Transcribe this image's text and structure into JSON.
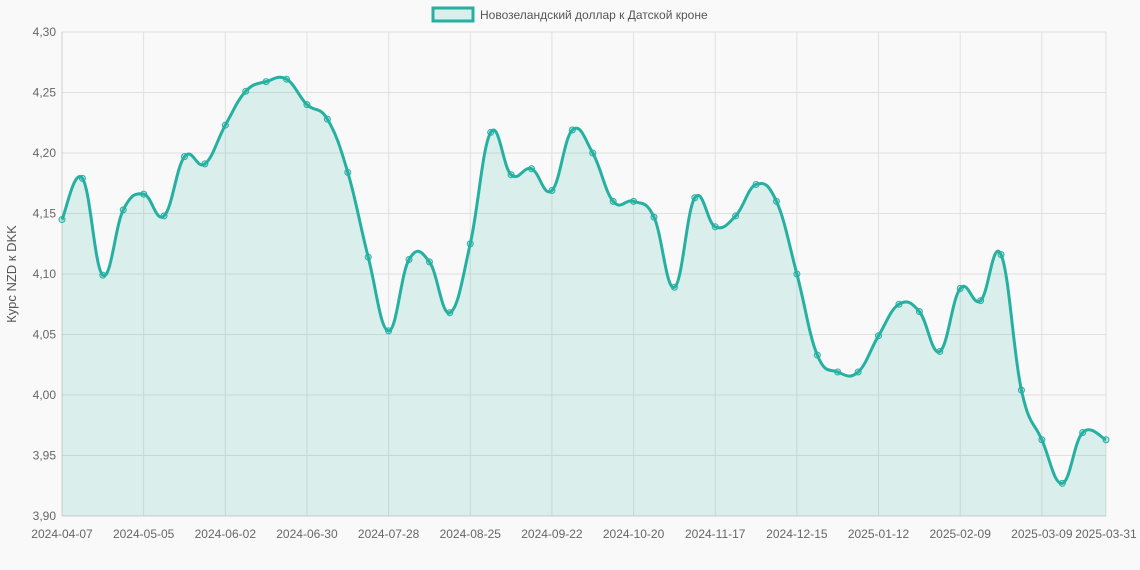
{
  "colors": {
    "line": "#26b0a2",
    "fill": "rgba(38,176,162,0.15)",
    "grid": "#e0e0e0",
    "background": "#f9f9f9"
  },
  "chart_data": {
    "type": "area",
    "ylabel": "Курс NZD к DKK",
    "ylim": [
      3.9,
      4.3
    ],
    "y_ticks": [
      "4,30",
      "4,25",
      "4,20",
      "4,15",
      "4,10",
      "4,05",
      "4,00",
      "3,95",
      "3,90"
    ],
    "x_tick_labels": [
      "2024-04-07",
      "2024-05-05",
      "2024-06-02",
      "2024-06-30",
      "2024-07-28",
      "2024-08-25",
      "2024-09-22",
      "2024-10-20",
      "2024-11-17",
      "2024-12-15",
      "2025-01-12",
      "2025-02-09",
      "2025-03-09",
      "2025-03-31"
    ],
    "legend": {
      "position": "top-center"
    },
    "grid": true,
    "series": [
      {
        "name": "Новозеландский доллар к Датской кроне",
        "x": [
          "2024-04-07",
          "2024-04-14",
          "2024-04-21",
          "2024-04-28",
          "2024-05-05",
          "2024-05-12",
          "2024-05-19",
          "2024-05-26",
          "2024-06-02",
          "2024-06-09",
          "2024-06-16",
          "2024-06-23",
          "2024-06-30",
          "2024-07-07",
          "2024-07-14",
          "2024-07-21",
          "2024-07-28",
          "2024-08-04",
          "2024-08-11",
          "2024-08-18",
          "2024-08-25",
          "2024-09-01",
          "2024-09-08",
          "2024-09-15",
          "2024-09-22",
          "2024-09-29",
          "2024-10-06",
          "2024-10-13",
          "2024-10-20",
          "2024-10-27",
          "2024-11-03",
          "2024-11-10",
          "2024-11-17",
          "2024-11-24",
          "2024-12-01",
          "2024-12-08",
          "2024-12-15",
          "2024-12-22",
          "2024-12-29",
          "2025-01-05",
          "2025-01-12",
          "2025-01-19",
          "2025-01-26",
          "2025-02-02",
          "2025-02-09",
          "2025-02-16",
          "2025-02-23",
          "2025-03-02",
          "2025-03-09",
          "2025-03-16",
          "2025-03-23",
          "2025-03-31"
        ],
        "values": [
          4.145,
          4.179,
          4.099,
          4.153,
          4.166,
          4.148,
          4.197,
          4.191,
          4.223,
          4.251,
          4.259,
          4.261,
          4.24,
          4.228,
          4.184,
          4.114,
          4.053,
          4.112,
          4.11,
          4.068,
          4.125,
          4.217,
          4.182,
          4.187,
          4.169,
          4.219,
          4.2,
          4.16,
          4.16,
          4.147,
          4.089,
          4.163,
          4.139,
          4.148,
          4.174,
          4.16,
          4.1,
          4.033,
          4.019,
          4.019,
          4.049,
          4.075,
          4.069,
          4.036,
          4.088,
          4.078,
          4.116,
          4.004,
          3.963,
          3.927,
          3.969,
          3.963
        ]
      }
    ]
  }
}
